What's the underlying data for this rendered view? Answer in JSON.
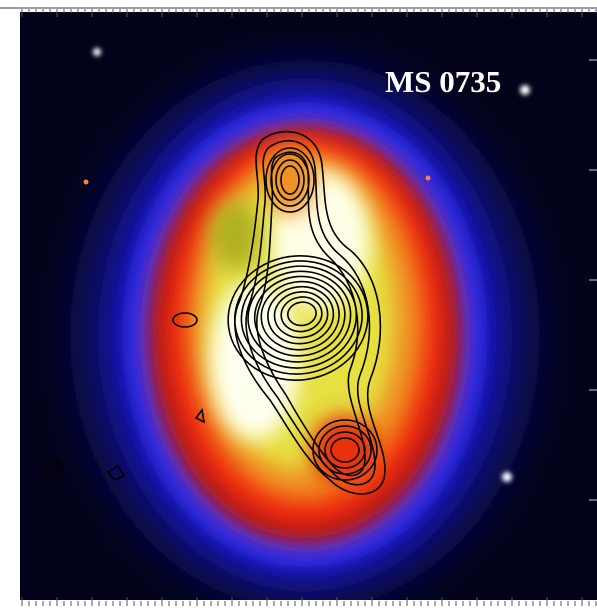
{
  "image": {
    "label": "MS 0735"
  }
}
